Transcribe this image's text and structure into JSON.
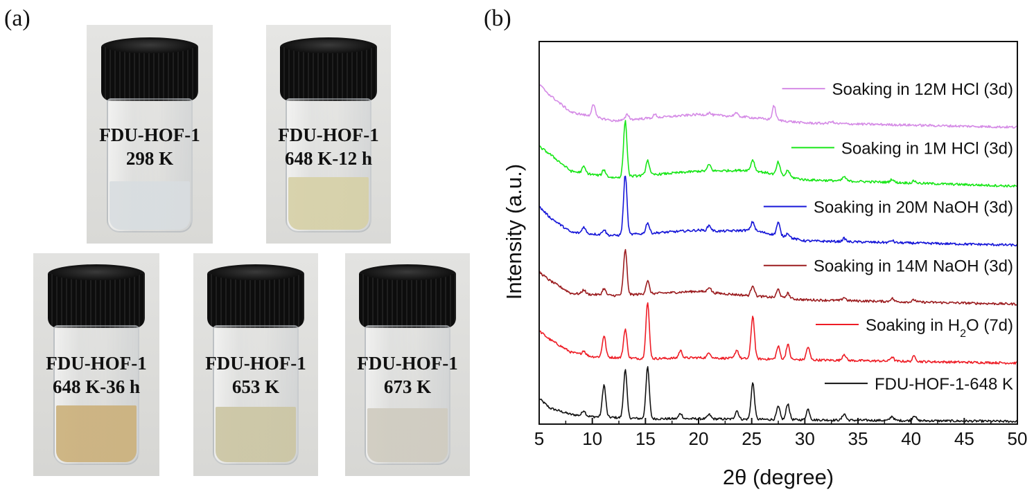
{
  "panel_a": {
    "label": "(a)",
    "vials": [
      {
        "line1": "FDU-HOF-1",
        "line2": "298 K",
        "liquid": "#d8dde0"
      },
      {
        "line1": "FDU-HOF-1",
        "line2": "648 K-12 h",
        "liquid": "#d6d0a6"
      },
      {
        "line1": "FDU-HOF-1",
        "line2": "648 K-36 h",
        "liquid": "#cbb07a"
      },
      {
        "line1": "FDU-HOF-1",
        "line2": "653 K",
        "liquid": "#cbc5a2"
      },
      {
        "line1": "FDU-HOF-1",
        "line2": "673 K",
        "liquid": "#cfcbbf"
      }
    ]
  },
  "panel_b": {
    "label": "(b)"
  },
  "chart_data": {
    "type": "line",
    "title": "",
    "xlabel": "2θ (degree)",
    "ylabel": "Intensity (a.u.)",
    "xlim": [
      5,
      50
    ],
    "xticks": [
      5,
      10,
      15,
      20,
      25,
      30,
      35,
      40,
      45,
      50
    ],
    "yticks": [],
    "grid": false,
    "legend": "inline labels, right of each trace",
    "series": [
      {
        "name": "FDU-HOF-1-648 K",
        "label_main": "FDU-HOF-1-648 K",
        "label_sub": "",
        "label_tail": "",
        "color": "#111111",
        "offset": 0,
        "base": [
          [
            5,
            0.22
          ],
          [
            6,
            0.13
          ],
          [
            8,
            0.07
          ],
          [
            10,
            0.05
          ],
          [
            15,
            0.03
          ],
          [
            20,
            0.03
          ],
          [
            30,
            0.02
          ],
          [
            50,
            0.005
          ]
        ],
        "peaks": [
          [
            9.2,
            0.05
          ],
          [
            11.1,
            0.3
          ],
          [
            13.1,
            0.45
          ],
          [
            15.2,
            0.48
          ],
          [
            18.3,
            0.05
          ],
          [
            21.0,
            0.04
          ],
          [
            23.6,
            0.08
          ],
          [
            25.1,
            0.34
          ],
          [
            27.5,
            0.12
          ],
          [
            28.4,
            0.15
          ],
          [
            30.3,
            0.1
          ],
          [
            33.7,
            0.06
          ],
          [
            38.2,
            0.04
          ],
          [
            40.3,
            0.05
          ]
        ]
      },
      {
        "name": "Soaking in H2O (7d)",
        "label_main": "Soaking in H",
        "label_sub": "2",
        "label_tail": "O (7d)",
        "color": "#ee1c25",
        "offset": 0.55,
        "base": [
          [
            5,
            0.3
          ],
          [
            6,
            0.22
          ],
          [
            8,
            0.1
          ],
          [
            10,
            0.06
          ],
          [
            15,
            0.04
          ],
          [
            20,
            0.05
          ],
          [
            30,
            0.03
          ],
          [
            50,
            0.0
          ]
        ],
        "peaks": [
          [
            9.2,
            0.04
          ],
          [
            11.1,
            0.2
          ],
          [
            13.1,
            0.27
          ],
          [
            15.2,
            0.52
          ],
          [
            18.3,
            0.07
          ],
          [
            21.0,
            0.05
          ],
          [
            23.6,
            0.08
          ],
          [
            25.1,
            0.4
          ],
          [
            27.5,
            0.12
          ],
          [
            28.4,
            0.14
          ],
          [
            30.3,
            0.12
          ],
          [
            33.7,
            0.06
          ],
          [
            38.2,
            0.04
          ],
          [
            40.3,
            0.05
          ]
        ]
      },
      {
        "name": "Soaking in 14M NaOH (3d)",
        "label_main": "Soaking in 14M NaOH (3d)",
        "label_sub": "",
        "label_tail": "",
        "color": "#9b1b1e",
        "offset": 1.1,
        "base": [
          [
            5,
            0.3
          ],
          [
            6,
            0.22
          ],
          [
            8,
            0.1
          ],
          [
            12,
            0.08
          ],
          [
            20,
            0.12
          ],
          [
            22,
            0.1
          ],
          [
            30,
            0.04
          ],
          [
            50,
            0.0
          ]
        ],
        "peaks": [
          [
            9.2,
            0.04
          ],
          [
            11.1,
            0.06
          ],
          [
            13.1,
            0.42
          ],
          [
            15.2,
            0.12
          ],
          [
            21.0,
            0.05
          ],
          [
            25.1,
            0.1
          ],
          [
            27.5,
            0.08
          ],
          [
            28.4,
            0.05
          ],
          [
            33.7,
            0.03
          ],
          [
            38.2,
            0.03
          ],
          [
            40.3,
            0.02
          ]
        ]
      },
      {
        "name": "Soaking in 20M NaOH (3d)",
        "label_main": "Soaking in 20M NaOH (3d)",
        "label_sub": "",
        "label_tail": "",
        "color": "#1515d8",
        "offset": 1.65,
        "base": [
          [
            5,
            0.36
          ],
          [
            6,
            0.26
          ],
          [
            8,
            0.12
          ],
          [
            12,
            0.09
          ],
          [
            20,
            0.14
          ],
          [
            22,
            0.13
          ],
          [
            25,
            0.14
          ],
          [
            30,
            0.04
          ],
          [
            50,
            0.0
          ]
        ],
        "peaks": [
          [
            9.2,
            0.06
          ],
          [
            11.1,
            0.05
          ],
          [
            13.1,
            0.56
          ],
          [
            15.2,
            0.1
          ],
          [
            21.0,
            0.05
          ],
          [
            25.1,
            0.08
          ],
          [
            27.5,
            0.12
          ],
          [
            28.4,
            0.04
          ],
          [
            33.7,
            0.03
          ],
          [
            38.2,
            0.02
          ]
        ]
      },
      {
        "name": "Soaking in 1M HCl (3d)",
        "label_main": "Soaking in 1M HCl (3d)",
        "label_sub": "",
        "label_tail": "",
        "color": "#17e617",
        "offset": 2.2,
        "base": [
          [
            5,
            0.37
          ],
          [
            6,
            0.3
          ],
          [
            8,
            0.14
          ],
          [
            12,
            0.08
          ],
          [
            20,
            0.14
          ],
          [
            25,
            0.15
          ],
          [
            30,
            0.06
          ],
          [
            50,
            0.0
          ]
        ],
        "peaks": [
          [
            9.2,
            0.06
          ],
          [
            11.1,
            0.06
          ],
          [
            13.1,
            0.52
          ],
          [
            15.2,
            0.14
          ],
          [
            21.0,
            0.06
          ],
          [
            25.1,
            0.1
          ],
          [
            27.5,
            0.12
          ],
          [
            28.4,
            0.06
          ],
          [
            33.7,
            0.04
          ],
          [
            38.2,
            0.03
          ],
          [
            40.3,
            0.02
          ]
        ]
      },
      {
        "name": "Soaking in 12M HCl (3d)",
        "label_main": "Soaking in 12M HCl (3d)",
        "label_sub": "",
        "label_tail": "",
        "color": "#d58be6",
        "offset": 2.75,
        "base": [
          [
            5,
            0.4
          ],
          [
            6,
            0.3
          ],
          [
            8,
            0.14
          ],
          [
            12,
            0.06
          ],
          [
            20,
            0.12
          ],
          [
            24,
            0.1
          ],
          [
            30,
            0.04
          ],
          [
            50,
            0.0
          ]
        ],
        "peaks": [
          [
            10.1,
            0.12
          ],
          [
            13.3,
            0.05
          ],
          [
            15.9,
            0.03
          ],
          [
            21.0,
            0.02
          ],
          [
            23.5,
            0.03
          ],
          [
            27.1,
            0.13
          ],
          [
            32.5,
            0.02
          ]
        ]
      }
    ]
  }
}
